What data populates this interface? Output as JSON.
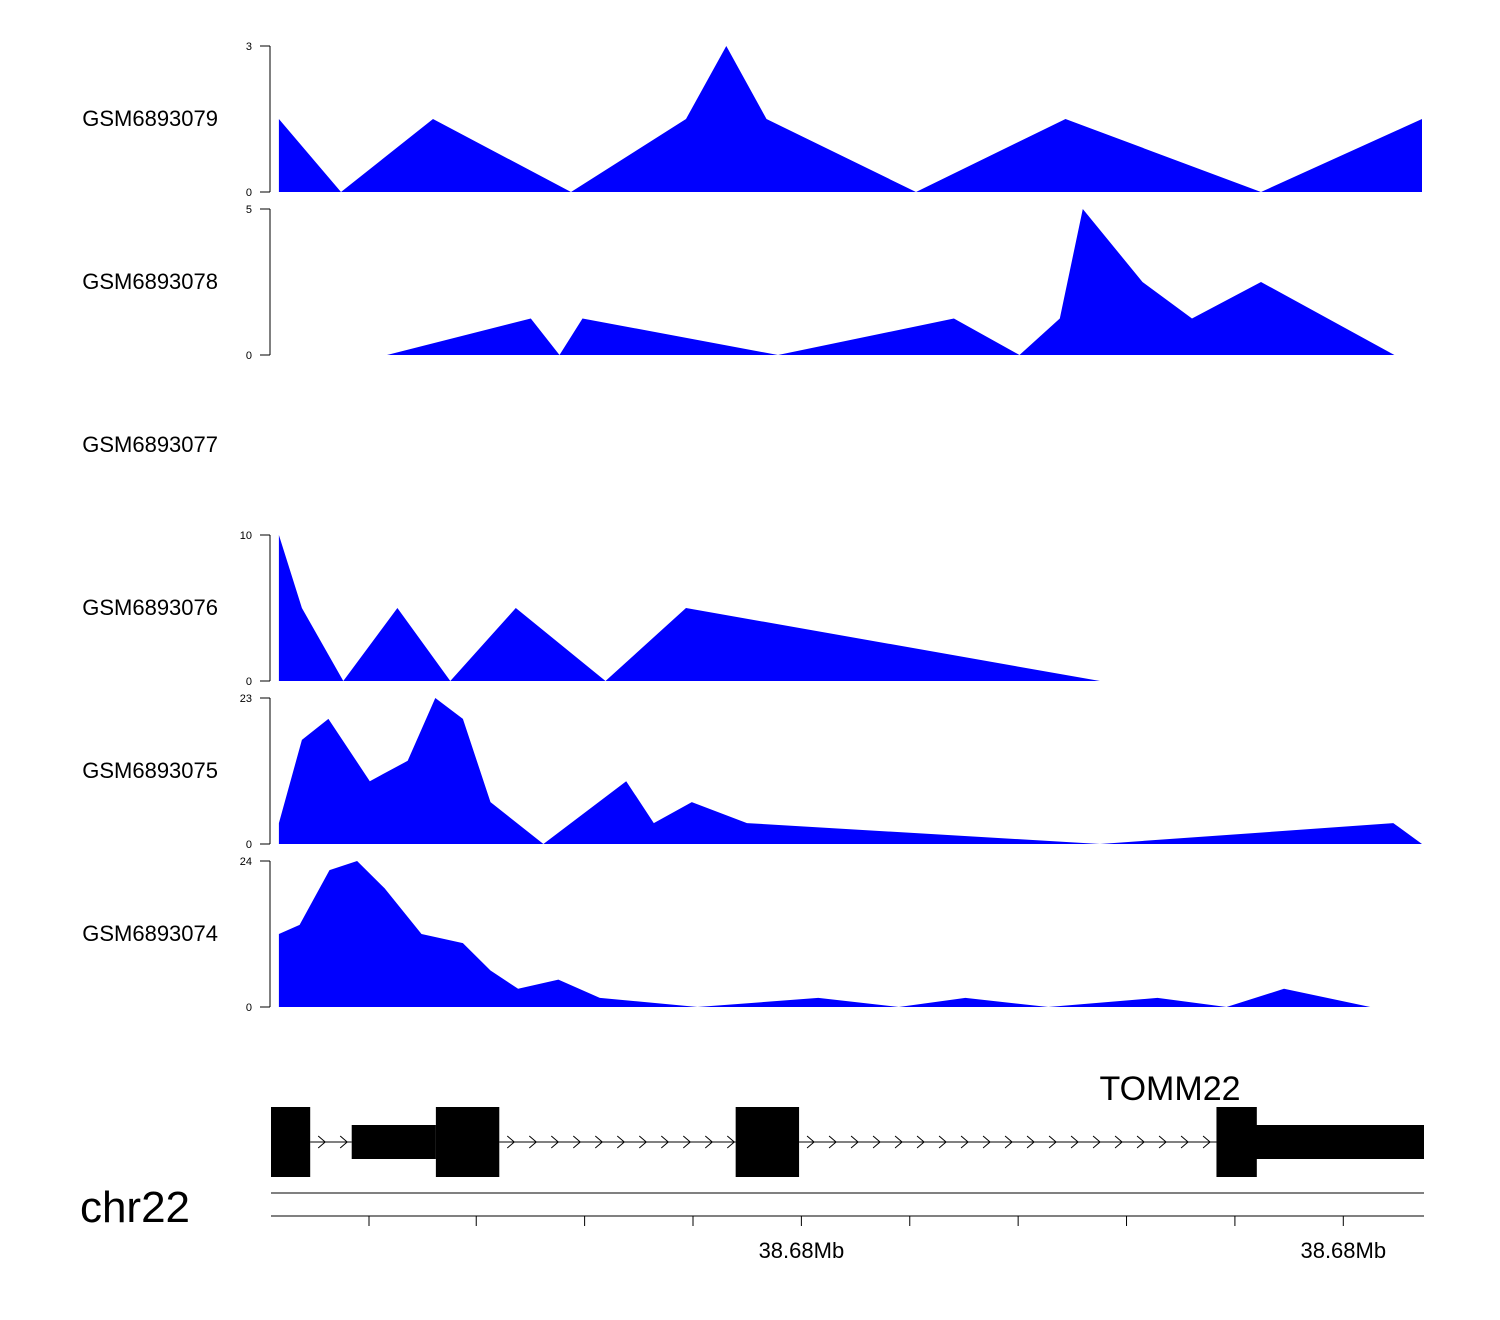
{
  "chart_data": {
    "type": "area",
    "chromosome": "chr22",
    "gene": "TOMM22",
    "fill_color": "#0000ff",
    "x_range": [
      0,
      1
    ],
    "genome_axis": {
      "tick_labels": [
        "38.68Mb",
        "38.68Mb"
      ],
      "major_tick_positions": [
        0.46,
        0.93
      ],
      "minor_tick_positions": [
        0.085,
        0.178,
        0.272,
        0.366,
        0.46,
        0.554,
        0.648,
        0.742,
        0.836,
        0.93
      ]
    },
    "tracks": [
      {
        "name": "GSM6893079",
        "ylim": [
          0,
          3
        ],
        "tick_labels": [
          "3",
          "0"
        ],
        "x": [
          0.006,
          0.06,
          0.14,
          0.26,
          0.36,
          0.395,
          0.43,
          0.56,
          0.69,
          0.86,
          1.0
        ],
        "y": [
          1.5,
          0,
          1.5,
          0,
          1.5,
          3,
          1.5,
          0,
          1.5,
          0,
          1.5
        ]
      },
      {
        "name": "GSM6893078",
        "ylim": [
          0,
          5
        ],
        "tick_labels": [
          "5",
          "0"
        ],
        "x": [
          0.1,
          0.225,
          0.25,
          0.27,
          0.44,
          0.593,
          0.65,
          0.685,
          0.705,
          0.757,
          0.8,
          0.86,
          0.976
        ],
        "y": [
          0,
          1.25,
          0,
          1.25,
          0,
          1.25,
          0,
          1.25,
          5,
          2.5,
          1.25,
          2.5,
          0
        ]
      },
      {
        "name": "GSM6893077",
        "ylim": null,
        "tick_labels": [],
        "x": [],
        "y": []
      },
      {
        "name": "GSM6893076",
        "ylim": [
          0,
          10
        ],
        "tick_labels": [
          "10",
          "0"
        ],
        "x": [
          0.006,
          0.026,
          0.062,
          0.109,
          0.155,
          0.212,
          0.29,
          0.36,
          0.72
        ],
        "y": [
          10,
          5,
          0,
          5,
          0,
          5,
          0,
          5,
          0
        ]
      },
      {
        "name": "GSM6893075",
        "ylim": [
          0,
          23
        ],
        "tick_labels": [
          "23",
          "0"
        ],
        "x": [
          0.006,
          0.026,
          0.049,
          0.085,
          0.118,
          0.142,
          0.166,
          0.19,
          0.236,
          0.308,
          0.332,
          0.365,
          0.413,
          0.72,
          0.975,
          1.0
        ],
        "y": [
          3.3,
          16.4,
          19.7,
          9.9,
          13.1,
          23,
          19.7,
          6.6,
          0,
          9.9,
          3.3,
          6.6,
          3.3,
          0,
          3.3,
          0
        ]
      },
      {
        "name": "GSM6893074",
        "ylim": [
          0,
          24
        ],
        "tick_labels": [
          "24",
          "0"
        ],
        "x": [
          0.006,
          0.024,
          0.05,
          0.074,
          0.098,
          0.13,
          0.166,
          0.19,
          0.214,
          0.249,
          0.285,
          0.37,
          0.475,
          0.545,
          0.603,
          0.675,
          0.77,
          0.83,
          0.88,
          0.955
        ],
        "y": [
          12,
          13.5,
          22.5,
          24,
          19.5,
          12,
          10.5,
          6,
          3,
          4.5,
          1.5,
          0,
          1.5,
          0,
          1.5,
          0,
          1.5,
          0,
          3,
          0
        ]
      }
    ],
    "gene_model": {
      "utr_blocks": [
        [
          0.07,
          0.143
        ],
        [
          0.85,
          1.0
        ]
      ],
      "exon_blocks": [
        [
          0.0,
          0.034
        ],
        [
          0.143,
          0.198
        ],
        [
          0.403,
          0.458
        ],
        [
          0.82,
          0.855
        ]
      ],
      "intron_segments": [
        [
          0.034,
          0.07
        ],
        [
          0.198,
          0.403
        ],
        [
          0.458,
          0.82
        ]
      ]
    }
  }
}
